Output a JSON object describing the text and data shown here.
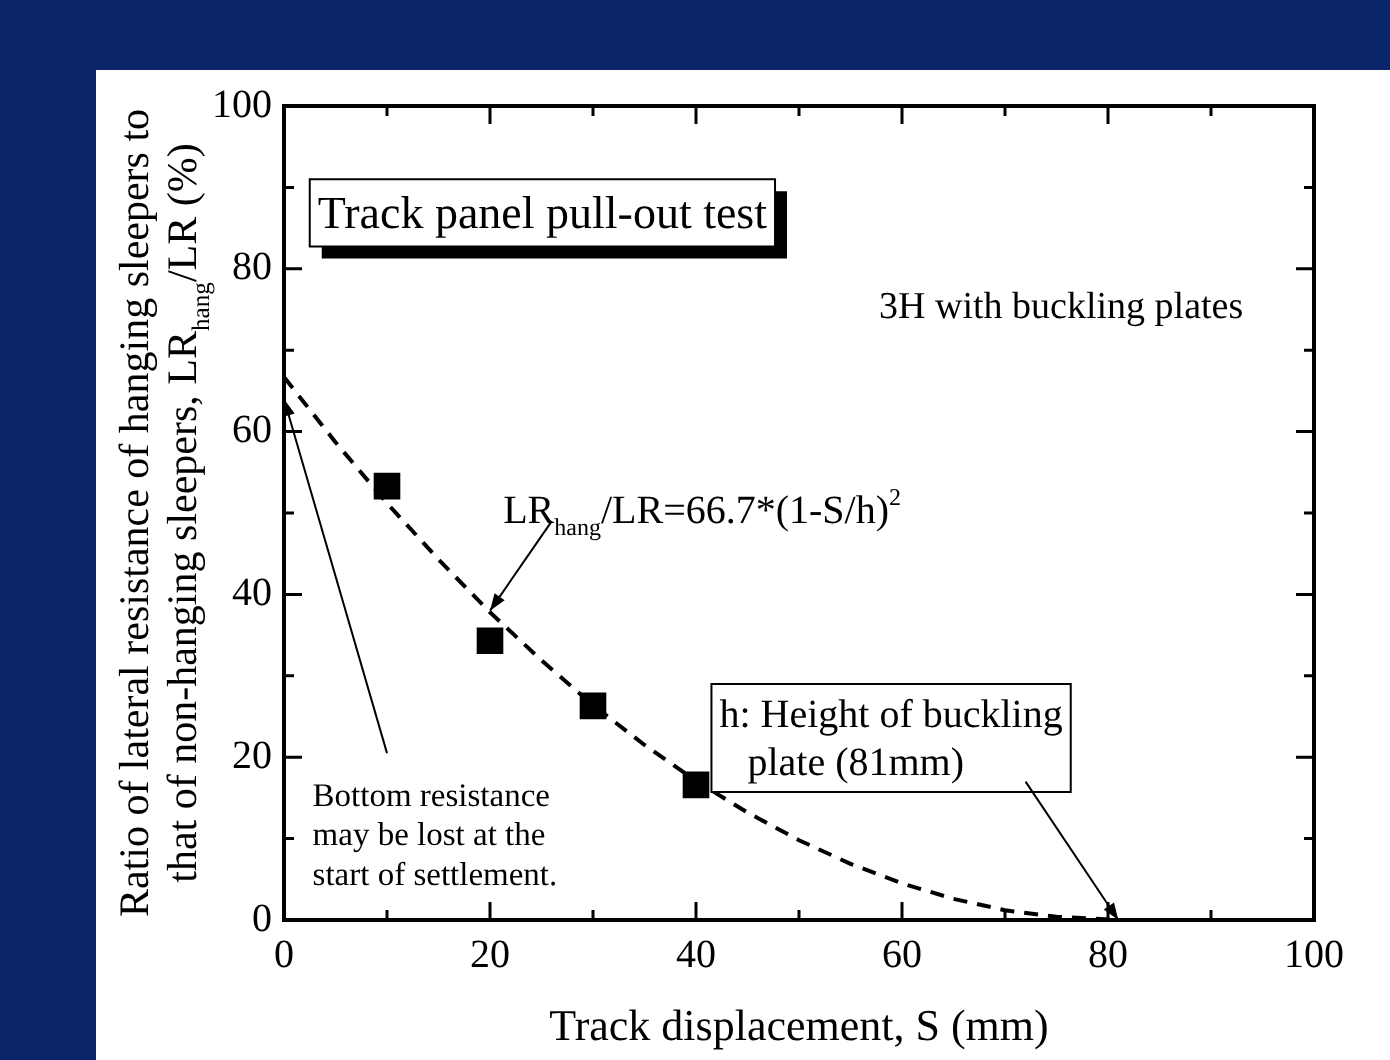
{
  "chart_data": {
    "type": "scatter",
    "xlabel": "Track displacement, S (mm)",
    "ylabel": "Ratio of lateral resistance of hanging sleepers to that of non-hanging sleepers, LR$_{hang}$/LR (%)",
    "series": [
      {
        "color": "#000000",
        "marker": "square",
        "x": [
          10,
          20,
          30,
          40
        ],
        "values": [
          53.3,
          34.3,
          26.3,
          16.6
        ]
      },
      {
        "type": "line",
        "color": "#000000",
        "marker": "none",
        "line_style": "dashed",
        "x": [
          0,
          5,
          10,
          15,
          20,
          25,
          30,
          35,
          40,
          45,
          50,
          55,
          60,
          65,
          70,
          75,
          81
        ],
        "values": [
          66.7,
          58.7,
          51.2,
          44.3,
          37.8,
          31.9,
          26.4,
          21.5,
          17.1,
          13.2,
          9.8,
          6.9,
          4.5,
          2.6,
          1.2,
          0.4,
          0
        ]
      }
    ],
    "xlim": [
      0,
      100
    ],
    "ylim": [
      0,
      100
    ],
    "xticks": [
      0,
      {
        "value": 10,
        "label": null
      },
      20,
      {
        "value": 30,
        "label": null
      },
      40,
      {
        "value": 50,
        "label": null
      },
      60,
      {
        "value": 70,
        "label": null
      },
      80,
      {
        "value": 90,
        "label": null
      },
      100
    ],
    "yticks": [
      0,
      {
        "value": 10,
        "label": null
      },
      20,
      {
        "value": 30,
        "label": null
      },
      40,
      {
        "value": 50,
        "label": null
      },
      60,
      {
        "value": 70,
        "label": null
      },
      80,
      {
        "value": 90,
        "label": null
      },
      100
    ],
    "grid": false,
    "legend": false,
    "annotations": [
      "Track panel pull-out test",
      "3H with buckling plates",
      {
        "text": "LR$_{hang}$/LR=66.7*(1-S/h)$^{2}$",
        "x": 20,
        "y": 38
      },
      {
        "text": "h: Height of buckling plate (81mm)",
        "x": 81,
        "y": 0
      },
      "Bottom resistance may be lost at the start of settlement."
    ]
  }
}
